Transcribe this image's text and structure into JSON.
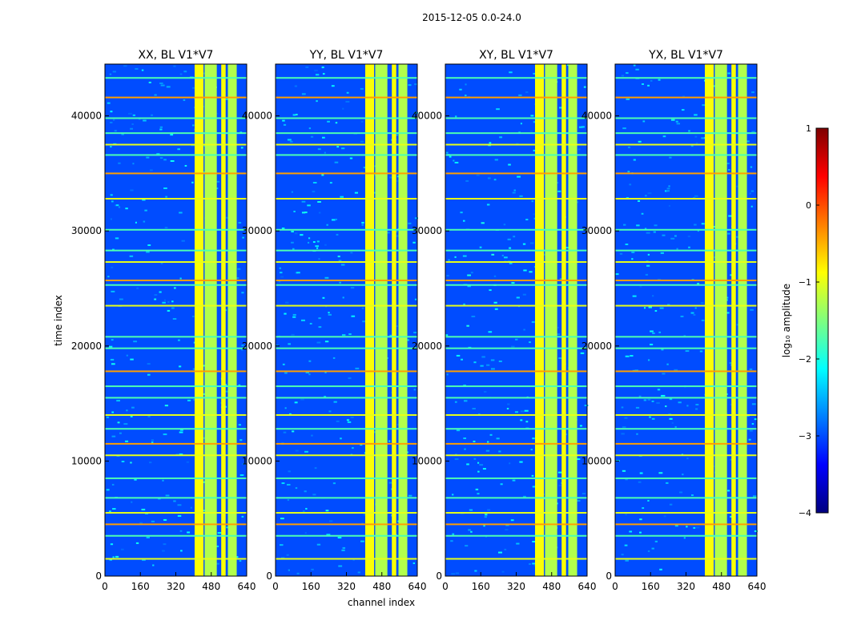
{
  "chart_data": {
    "type": "heatmap",
    "suptitle": "2015-12-05 0.0-24.0",
    "xlabel": "channel index",
    "ylabel": "time index",
    "xlim": [
      0,
      640
    ],
    "ylim": [
      0,
      44500
    ],
    "xticks": [
      "0",
      "160",
      "320",
      "480",
      "640"
    ],
    "xtick_values": [
      0,
      160,
      320,
      480,
      640
    ],
    "yticks": [
      "0",
      "10000",
      "20000",
      "30000",
      "40000"
    ],
    "ytick_values": [
      0,
      10000,
      20000,
      30000,
      40000
    ],
    "panels": [
      {
        "title": "XX, BL V1*V7"
      },
      {
        "title": "YY, BL V1*V7"
      },
      {
        "title": "XY, BL V1*V7"
      },
      {
        "title": "YX, BL V1*V7"
      }
    ],
    "colorbar": {
      "label": "log₁₀ amplitude",
      "range": [
        -4,
        1
      ],
      "ticks": [
        "1",
        "0",
        "−1",
        "−2",
        "−3",
        "−4"
      ],
      "tick_values": [
        1,
        0,
        -1,
        -2,
        -3,
        -4
      ]
    },
    "colormap": [
      "#00007f",
      "#0000ff",
      "#007fff",
      "#00ffff",
      "#7fff7f",
      "#ffff00",
      "#ff7f00",
      "#ff0000",
      "#7f0000"
    ],
    "rfi_channel_bands": [
      [
        405,
        445
      ],
      [
        450,
        505
      ],
      [
        525,
        545
      ],
      [
        555,
        595
      ]
    ],
    "rfi_time_lines": [
      1500,
      3500,
      4500,
      5500,
      6800,
      8500,
      10500,
      11500,
      12800,
      14000,
      15500,
      16500,
      17800,
      19800,
      20800,
      23500,
      25300,
      25700,
      27300,
      28300,
      30100,
      32800,
      35000,
      36600,
      37500,
      38500,
      39800,
      41600,
      43300
    ]
  }
}
